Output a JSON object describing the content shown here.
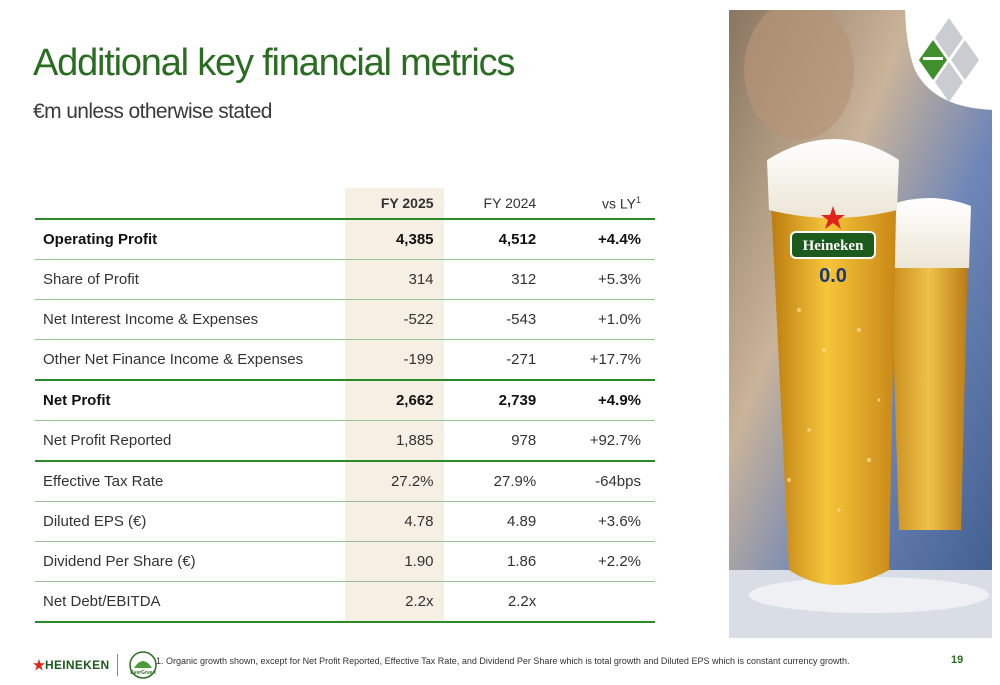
{
  "slide": {
    "title": "Additional key financial metrics",
    "subtitle": "€m unless otherwise stated",
    "page_number": "19"
  },
  "table": {
    "headers": {
      "col1": "FY 2025",
      "col2": "FY 2024",
      "col3": "vs LY",
      "col3_sup": "1"
    },
    "rows": [
      {
        "label": "Operating Profit",
        "fy2025": "4,385",
        "fy2024": "4,512",
        "vs_ly": "+4.4%"
      },
      {
        "label": "Share of Profit",
        "fy2025": "314",
        "fy2024": "312",
        "vs_ly": "+5.3%"
      },
      {
        "label": "Net Interest Income & Expenses",
        "fy2025": "-522",
        "fy2024": "-543",
        "vs_ly": "+1.0%"
      },
      {
        "label": "Other Net Finance Income & Expenses",
        "fy2025": "-199",
        "fy2024": "-271",
        "vs_ly": "+17.7%"
      },
      {
        "label": "Net Profit",
        "fy2025": "2,662",
        "fy2024": "2,739",
        "vs_ly": "+4.9%"
      },
      {
        "label": "Net Profit Reported",
        "fy2025": "1,885",
        "fy2024": "978",
        "vs_ly": "+92.7%"
      },
      {
        "label": "Effective Tax Rate",
        "fy2025": "27.2%",
        "fy2024": "27.9%",
        "vs_ly": "-64bps"
      },
      {
        "label": "Diluted EPS (€)",
        "fy2025": "4.78",
        "fy2024": "4.89",
        "vs_ly": "+3.6%"
      },
      {
        "label": "Dividend Per Share (€)",
        "fy2025": "1.90",
        "fy2024": "1.86",
        "vs_ly": "+2.2%"
      },
      {
        "label": "Net Debt/EBITDA",
        "fy2025": "2.2x",
        "fy2024": "2.2x",
        "vs_ly": ""
      }
    ]
  },
  "photo": {
    "glass_brand": "Heineken",
    "glass_variant": "0.0"
  },
  "footer": {
    "brand": "HEINEKEN",
    "evergreen_small": "EverGreen",
    "footnote": "1. Organic growth shown, except for Net Profit Reported, Effective Tax Rate, and Dividend Per Share which is total growth and Diluted EPS which is constant currency growth."
  },
  "colors": {
    "brand_green": "#2a6d22",
    "rule_green": "#2a8a2a",
    "highlight_column": "#f6efe4"
  }
}
